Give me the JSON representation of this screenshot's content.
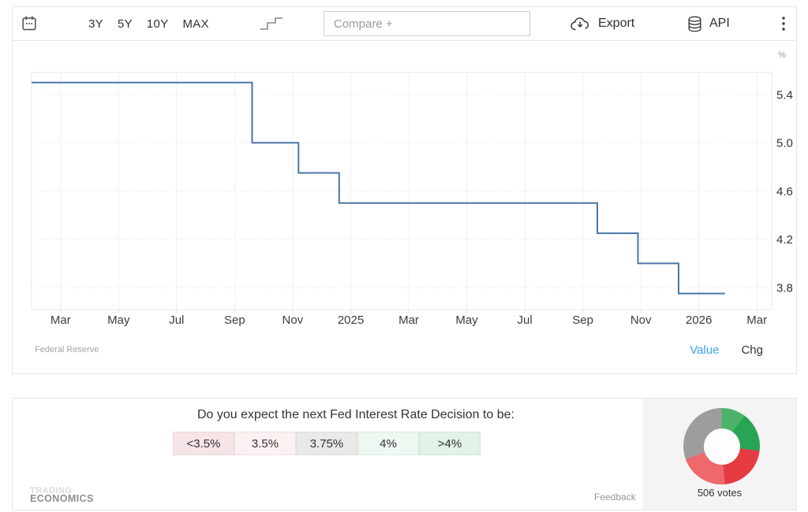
{
  "toolbar": {
    "ranges": [
      "3Y",
      "5Y",
      "10Y",
      "MAX"
    ],
    "compare_placeholder": "Compare +",
    "export_label": "Export",
    "api_label": "API"
  },
  "chart": {
    "source_label": "Federal Reserve",
    "value_tab": "Value",
    "chg_tab": "Chg",
    "unit_label": "%",
    "line_color": "#4a76a8",
    "value_tab_color": "#3ba5f2"
  },
  "chart_data": {
    "type": "line",
    "step": true,
    "title": "",
    "xlabel": "",
    "ylabel": "%",
    "grid": true,
    "legend": "none",
    "y_ticks": [
      3.8,
      4.2,
      4.6,
      5.0,
      5.4
    ],
    "ylim": [
      3.617,
      5.583
    ],
    "x_tick_labels": [
      "Mar",
      "May",
      "Jul",
      "Sep",
      "Nov",
      "2025",
      "Mar",
      "May",
      "Jul",
      "Sep",
      "Nov",
      "2026",
      "Mar"
    ],
    "x_tick_t": [
      1,
      3,
      5,
      7,
      9,
      11,
      13,
      15,
      17,
      19,
      21,
      23,
      25
    ],
    "x_range_t": [
      0,
      25.51
    ],
    "t_origin": "2024-02",
    "points": [
      {
        "date": "2024-02",
        "t": 0,
        "value": 5.5
      },
      {
        "date": "2024-09",
        "t": 7.6,
        "value": 5.0
      },
      {
        "date": "2024-11",
        "t": 9.2,
        "value": 4.75
      },
      {
        "date": "2024-12",
        "t": 10.6,
        "value": 4.5
      },
      {
        "date": "2025-09",
        "t": 19.5,
        "value": 4.25
      },
      {
        "date": "2025-10",
        "t": 20.9,
        "value": 4.0
      },
      {
        "date": "2025-12",
        "t": 22.3,
        "value": 3.75
      }
    ],
    "end_t": 23.9,
    "end_date": "2026-01",
    "source": "Federal Reserve"
  },
  "poll": {
    "question": "Do you expect the next Fed Interest Rate Decision to be:",
    "options": [
      {
        "label": "<3.5%",
        "bg": "#f7e4e6"
      },
      {
        "label": "3.5%",
        "bg": "#fcf0f1"
      },
      {
        "label": "3.75%",
        "bg": "#e9e9e9"
      },
      {
        "label": "4%",
        "bg": "#eef7f0"
      },
      {
        "label": ">4%",
        "bg": "#e2f2e6"
      }
    ],
    "votes_label": "506 votes",
    "feedback_label": "Feedback",
    "watermark_top": "TRADING",
    "watermark_bottom": "ECONOMICS",
    "donut": {
      "type": "pie",
      "segments": [
        {
          "color": "#4db369",
          "deg": 37,
          "pct": 10.3
        },
        {
          "color": "#29a356",
          "deg": 60,
          "pct": 16.7
        },
        {
          "color": "#e63b40",
          "deg": 78,
          "pct": 21.7
        },
        {
          "color": "#ee686c",
          "deg": 75,
          "pct": 20.8
        },
        {
          "color": "#9d9d9d",
          "deg": 110,
          "pct": 30.5
        }
      ]
    }
  }
}
